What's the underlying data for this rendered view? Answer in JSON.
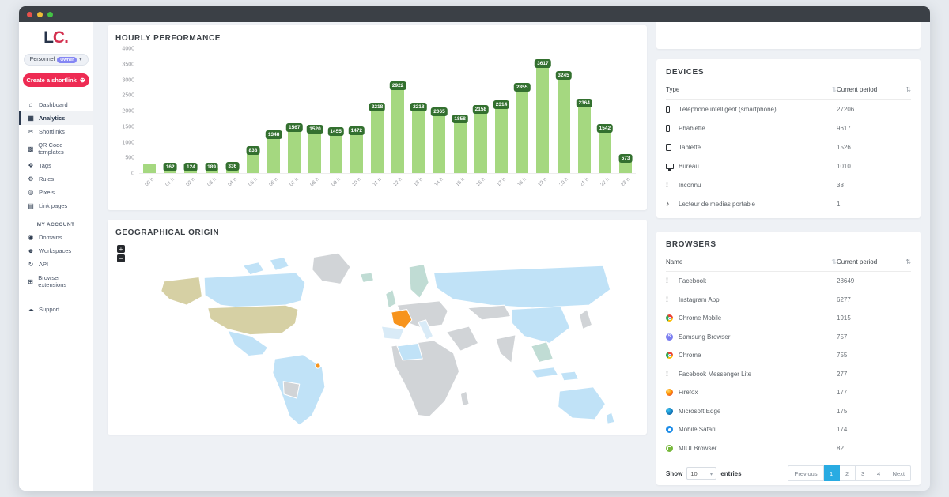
{
  "sidebar": {
    "logo": {
      "part1": "L",
      "part2": "C."
    },
    "workspace": {
      "label": "Personnel",
      "badge": "Owner"
    },
    "create_button": {
      "label": "Create a shortlink",
      "plus": "⊕",
      "color": "#ee2b53"
    },
    "nav": [
      {
        "icon": "dashboard",
        "label": "Dashboard",
        "active": false
      },
      {
        "icon": "analytics",
        "label": "Analytics",
        "active": true
      },
      {
        "icon": "shortlinks",
        "label": "Shortlinks",
        "active": false
      },
      {
        "icon": "qr-code",
        "label": "QR Code templates",
        "active": false
      },
      {
        "icon": "tags",
        "label": "Tags",
        "active": false
      },
      {
        "icon": "rules",
        "label": "Rules",
        "active": false
      },
      {
        "icon": "pixels",
        "label": "Pixels",
        "active": false
      },
      {
        "icon": "link-pages",
        "label": "Link pages",
        "active": false
      }
    ],
    "account_header": "MY ACCOUNT",
    "account_nav": [
      {
        "icon": "domains",
        "label": "Domains",
        "active": false
      },
      {
        "icon": "workspaces",
        "label": "Workspaces",
        "active": false
      },
      {
        "icon": "api",
        "label": "API",
        "active": false
      },
      {
        "icon": "extensions",
        "label": "Browser extensions",
        "active": false
      }
    ],
    "support": {
      "icon": "support",
      "label": "Support"
    }
  },
  "chart_data": {
    "type": "bar",
    "title": "HOURLY PERFORMANCE",
    "categories": [
      "00 h",
      "01 h",
      "02 h",
      "03 h",
      "04 h",
      "05 h",
      "06 h",
      "07 h",
      "08 h",
      "09 h",
      "10 h",
      "11 h",
      "12 h",
      "13 h",
      "14 h",
      "15 h",
      "16 h",
      "17 h",
      "18 h",
      "19 h",
      "20 h",
      "21 h",
      "22 h",
      "23 h"
    ],
    "values": [
      310,
      162,
      124,
      189,
      336,
      838,
      1348,
      1567,
      1520,
      1455,
      1472,
      2218,
      2922,
      2218,
      2065,
      1858,
      2158,
      2314,
      2855,
      3617,
      3245,
      2364,
      1542,
      573
    ],
    "bar_labels": [
      null,
      "162",
      "124",
      "189",
      "336",
      "838",
      "1348",
      "1567",
      "1520",
      "1455",
      "1472",
      "2218",
      "2922",
      "2218",
      "2065",
      "1858",
      "2158",
      "2314",
      "2855",
      "3617",
      "3245",
      "2364",
      "1542",
      "573"
    ],
    "yticks": [
      0,
      500,
      1000,
      1500,
      2000,
      2500,
      3000,
      3500,
      4000
    ],
    "ylim": [
      0,
      4000
    ],
    "grid": false,
    "legend": false,
    "xlabel": "",
    "ylabel": "",
    "bar_color": "#a5d880",
    "label_bg": "#33702f"
  },
  "map": {
    "title": "GEOGRAPHICAL ORIGIN",
    "zoom_in_label": "+",
    "zoom_out_label": "−",
    "palette": {
      "default": "#d1d4d7",
      "low": "#c0e2f7",
      "pale": "#d9ebf7",
      "teal": "#c0dcd4",
      "khaki": "#d6d0a4",
      "top": "#f7941d"
    },
    "top_country": "France"
  },
  "devices": {
    "title": "DEVICES",
    "columns": [
      "Type",
      "Current period"
    ],
    "rows": [
      {
        "icon": "smartphone",
        "label": "Téléphone intelligent (smartphone)",
        "value": "27206"
      },
      {
        "icon": "smartphone",
        "label": "Phablette",
        "value": "9617"
      },
      {
        "icon": "tablet",
        "label": "Tablette",
        "value": "1526"
      },
      {
        "icon": "desktop",
        "label": "Bureau",
        "value": "1010"
      },
      {
        "icon": "unknown",
        "label": "Inconnu",
        "value": "38"
      },
      {
        "icon": "media-player",
        "label": "Lecteur de medias portable",
        "value": "1"
      }
    ]
  },
  "browsers": {
    "title": "BROWSERS",
    "columns": [
      "Name",
      "Current period"
    ],
    "rows": [
      {
        "icon": "unknown",
        "label": "Facebook",
        "value": "28649"
      },
      {
        "icon": "unknown",
        "label": "Instagram App",
        "value": "6277"
      },
      {
        "icon": "chrome",
        "label": "Chrome Mobile",
        "value": "1915"
      },
      {
        "icon": "samsung",
        "label": "Samsung Browser",
        "value": "757"
      },
      {
        "icon": "chrome",
        "label": "Chrome",
        "value": "755"
      },
      {
        "icon": "unknown",
        "label": "Facebook Messenger Lite",
        "value": "277"
      },
      {
        "icon": "firefox",
        "label": "Firefox",
        "value": "177"
      },
      {
        "icon": "edge",
        "label": "Microsoft Edge",
        "value": "175"
      },
      {
        "icon": "safari",
        "label": "Mobile Safari",
        "value": "174"
      },
      {
        "icon": "miui",
        "label": "MIUI Browser",
        "value": "82"
      }
    ],
    "footer": {
      "show_label": "Show",
      "page_size": "10",
      "entries_label": "entries",
      "pages": [
        "Previous",
        "1",
        "2",
        "3",
        "4",
        "Next"
      ],
      "active_page": "1",
      "active_color": "#29abe2"
    }
  }
}
